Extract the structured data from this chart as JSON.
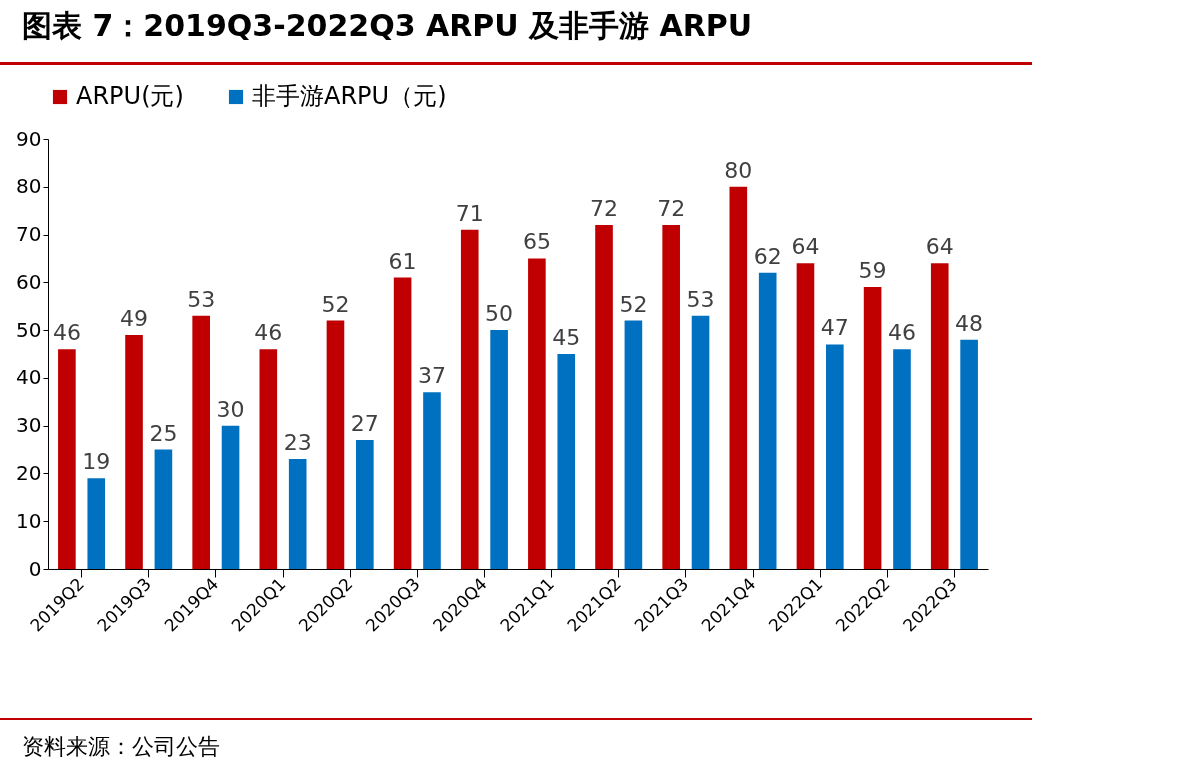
{
  "chart_data": {
    "type": "bar",
    "title": "图表 7：2019Q3-2022Q3 ARPU 及非手游 ARPU",
    "categories": [
      "2019Q2",
      "2019Q3",
      "2019Q4",
      "2020Q1",
      "2020Q2",
      "2020Q3",
      "2020Q4",
      "2021Q1",
      "2021Q2",
      "2021Q3",
      "2021Q4",
      "2022Q1",
      "2022Q2",
      "2022Q3"
    ],
    "series": [
      {
        "name": "ARPU(元)",
        "color": "#c00000",
        "values": [
          46,
          49,
          53,
          46,
          52,
          61,
          71,
          65,
          72,
          72,
          80,
          64,
          59,
          64
        ]
      },
      {
        "name": "非手游ARPU（元)",
        "color": "#0070c0",
        "values": [
          19,
          25,
          30,
          23,
          27,
          37,
          50,
          45,
          52,
          53,
          62,
          47,
          46,
          48
        ]
      }
    ],
    "ylim": [
      0,
      90
    ],
    "yticks": [
      0,
      10,
      20,
      30,
      40,
      50,
      60,
      70,
      80,
      90
    ],
    "grid": false,
    "legend": "top",
    "data_labels": true,
    "annotations": [
      "资料来源：公司公告"
    ]
  }
}
